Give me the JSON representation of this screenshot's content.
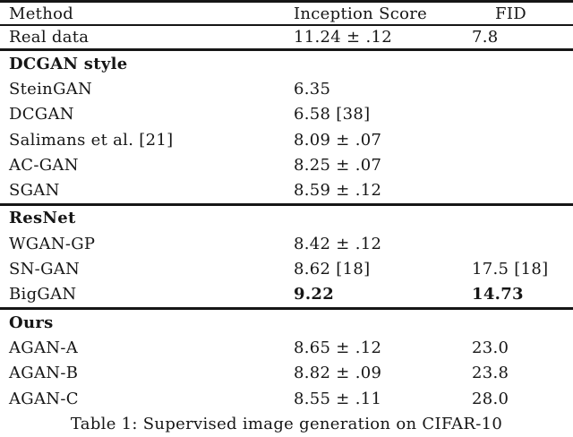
{
  "colors": {
    "background": "#ffffff",
    "text": "#161616",
    "rule": "#161616"
  },
  "table": {
    "header": {
      "method": "Method",
      "inception": "Inception Score",
      "fid": "FID"
    },
    "real_data": {
      "method": "Real data",
      "inception": "11.24 ± .12",
      "fid": "7.8"
    },
    "sections": [
      {
        "title": "DCGAN style",
        "rows": [
          {
            "method": "SteinGAN",
            "inception": "6.35"
          },
          {
            "method": "DCGAN",
            "inception": "6.58 [38]"
          },
          {
            "method": "Salimans et al. [21]",
            "inception": "8.09 ± .07"
          },
          {
            "method": "AC-GAN",
            "inception": "8.25 ± .07"
          },
          {
            "method": "SGAN",
            "inception": "8.59 ± .12"
          }
        ]
      },
      {
        "title": "ResNet",
        "rows": [
          {
            "method": "WGAN-GP",
            "inception": "8.42 ± .12"
          },
          {
            "method": "SN-GAN",
            "inception": "8.62 [18]",
            "fid": "17.5 [18]"
          },
          {
            "method": "BigGAN",
            "inception": "9.22",
            "fid": "14.73"
          }
        ]
      },
      {
        "title": "Ours",
        "rows": [
          {
            "method": "AGAN-A",
            "inception": "8.65 ± .12",
            "fid": "23.0"
          },
          {
            "method": "AGAN-B",
            "inception": "8.82 ± .09",
            "fid": "23.8"
          },
          {
            "method": "AGAN-C",
            "inception": "8.55 ± .11",
            "fid": "28.0"
          }
        ]
      }
    ],
    "caption": "Table 1: Supervised image generation on CIFAR-10"
  }
}
